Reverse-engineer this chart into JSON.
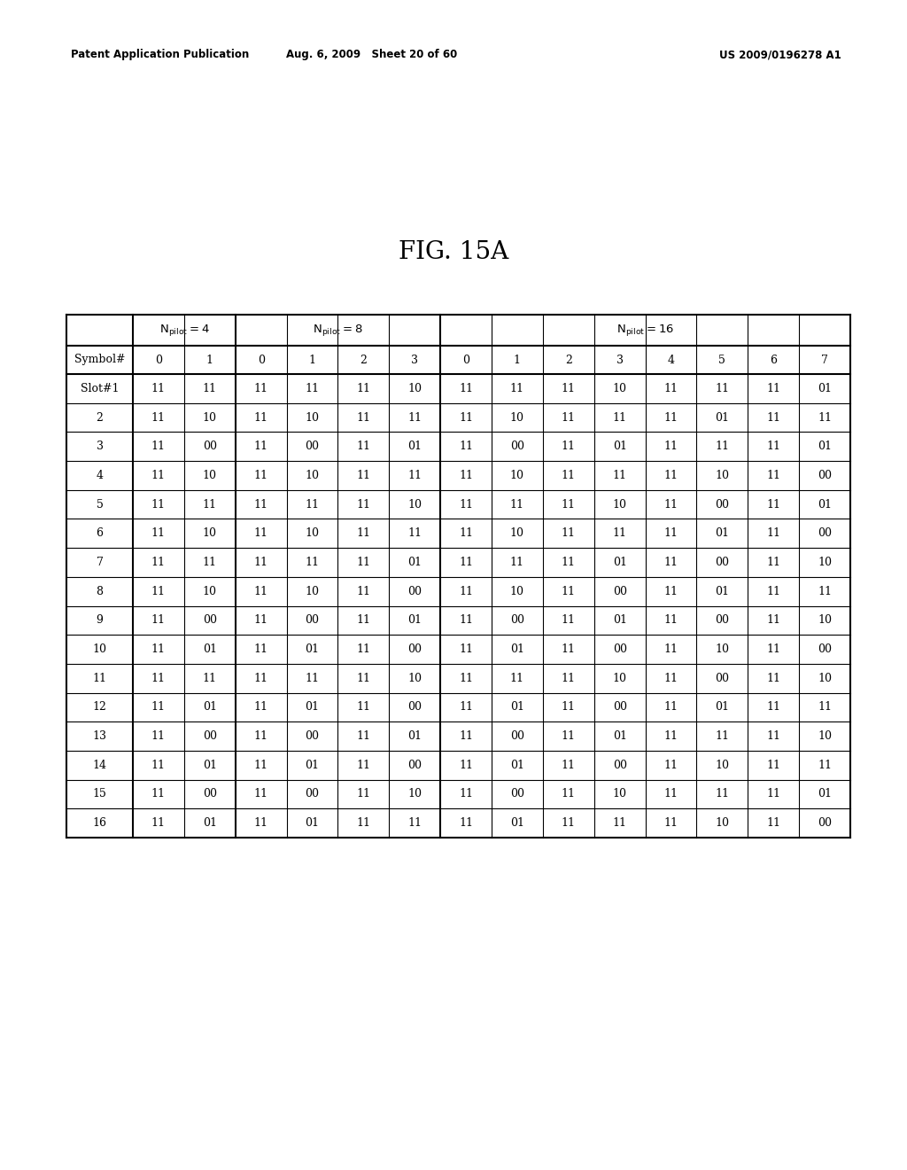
{
  "header_left": "Patent Application Publication",
  "header_mid": "Aug. 6, 2009   Sheet 20 of 60",
  "header_right": "US 2009/0196278 A1",
  "fig_title": "FIG. 15A",
  "rows": [
    {
      "slot": "Slot#1",
      "n4": [
        "11",
        "11"
      ],
      "n8": [
        "11",
        "11",
        "11",
        "10"
      ],
      "n16": [
        "11",
        "11",
        "11",
        "10",
        "11",
        "11",
        "11",
        "01"
      ]
    },
    {
      "slot": "2",
      "n4": [
        "11",
        "10"
      ],
      "n8": [
        "11",
        "10",
        "11",
        "11"
      ],
      "n16": [
        "11",
        "10",
        "11",
        "11",
        "11",
        "01",
        "11",
        "11"
      ]
    },
    {
      "slot": "3",
      "n4": [
        "11",
        "00"
      ],
      "n8": [
        "11",
        "00",
        "11",
        "01"
      ],
      "n16": [
        "11",
        "00",
        "11",
        "01",
        "11",
        "11",
        "11",
        "01"
      ]
    },
    {
      "slot": "4",
      "n4": [
        "11",
        "10"
      ],
      "n8": [
        "11",
        "10",
        "11",
        "11"
      ],
      "n16": [
        "11",
        "10",
        "11",
        "11",
        "11",
        "10",
        "11",
        "00"
      ]
    },
    {
      "slot": "5",
      "n4": [
        "11",
        "11"
      ],
      "n8": [
        "11",
        "11",
        "11",
        "10"
      ],
      "n16": [
        "11",
        "11",
        "11",
        "10",
        "11",
        "00",
        "11",
        "01"
      ]
    },
    {
      "slot": "6",
      "n4": [
        "11",
        "10"
      ],
      "n8": [
        "11",
        "10",
        "11",
        "11"
      ],
      "n16": [
        "11",
        "10",
        "11",
        "11",
        "11",
        "01",
        "11",
        "00"
      ]
    },
    {
      "slot": "7",
      "n4": [
        "11",
        "11"
      ],
      "n8": [
        "11",
        "11",
        "11",
        "01"
      ],
      "n16": [
        "11",
        "11",
        "11",
        "01",
        "11",
        "00",
        "11",
        "10"
      ]
    },
    {
      "slot": "8",
      "n4": [
        "11",
        "10"
      ],
      "n8": [
        "11",
        "10",
        "11",
        "00"
      ],
      "n16": [
        "11",
        "10",
        "11",
        "00",
        "11",
        "01",
        "11",
        "11"
      ]
    },
    {
      "slot": "9",
      "n4": [
        "11",
        "00"
      ],
      "n8": [
        "11",
        "00",
        "11",
        "01"
      ],
      "n16": [
        "11",
        "00",
        "11",
        "01",
        "11",
        "00",
        "11",
        "10"
      ]
    },
    {
      "slot": "10",
      "n4": [
        "11",
        "01"
      ],
      "n8": [
        "11",
        "01",
        "11",
        "00"
      ],
      "n16": [
        "11",
        "01",
        "11",
        "00",
        "11",
        "10",
        "11",
        "00"
      ]
    },
    {
      "slot": "11",
      "n4": [
        "11",
        "11"
      ],
      "n8": [
        "11",
        "11",
        "11",
        "10"
      ],
      "n16": [
        "11",
        "11",
        "11",
        "10",
        "11",
        "00",
        "11",
        "10"
      ]
    },
    {
      "slot": "12",
      "n4": [
        "11",
        "01"
      ],
      "n8": [
        "11",
        "01",
        "11",
        "00"
      ],
      "n16": [
        "11",
        "01",
        "11",
        "00",
        "11",
        "01",
        "11",
        "11"
      ]
    },
    {
      "slot": "13",
      "n4": [
        "11",
        "00"
      ],
      "n8": [
        "11",
        "00",
        "11",
        "01"
      ],
      "n16": [
        "11",
        "00",
        "11",
        "01",
        "11",
        "11",
        "11",
        "10"
      ]
    },
    {
      "slot": "14",
      "n4": [
        "11",
        "01"
      ],
      "n8": [
        "11",
        "01",
        "11",
        "00"
      ],
      "n16": [
        "11",
        "01",
        "11",
        "00",
        "11",
        "10",
        "11",
        "11"
      ]
    },
    {
      "slot": "15",
      "n4": [
        "11",
        "00"
      ],
      "n8": [
        "11",
        "00",
        "11",
        "10"
      ],
      "n16": [
        "11",
        "00",
        "11",
        "10",
        "11",
        "11",
        "11",
        "01"
      ]
    },
    {
      "slot": "16",
      "n4": [
        "11",
        "01"
      ],
      "n8": [
        "11",
        "01",
        "11",
        "11"
      ],
      "n16": [
        "11",
        "01",
        "11",
        "11",
        "11",
        "10",
        "11",
        "00"
      ]
    }
  ],
  "bg_color": "#ffffff",
  "text_color": "#000000"
}
